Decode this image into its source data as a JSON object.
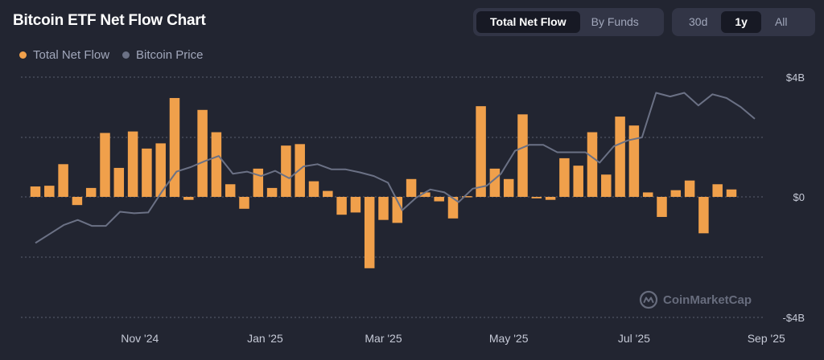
{
  "header": {
    "title": "Bitcoin ETF Net Flow Chart",
    "view_tabs": [
      {
        "label": "Total Net Flow",
        "active": true
      },
      {
        "label": "By Funds",
        "active": false
      }
    ],
    "range_tabs": [
      {
        "label": "30d",
        "active": false
      },
      {
        "label": "1y",
        "active": true
      },
      {
        "label": "All",
        "active": false
      }
    ]
  },
  "watermark": {
    "text": "CoinMarketCap",
    "icon": "coinmarketcap-logo-icon"
  },
  "colors": {
    "background": "#222531",
    "net_flow": "#F0A04B",
    "price": "#6B7185",
    "grid": "#5a5e6e",
    "text_muted": "#a1a7bb"
  },
  "chart_data": {
    "type": "bar",
    "legend": [
      "Total Net Flow",
      "Bitcoin Price"
    ],
    "legend_position": "top-left",
    "y_axis": {
      "position": "right",
      "ticks": [
        "$4B",
        "$0",
        "-$4B"
      ],
      "range": [
        -4,
        4
      ],
      "unit": "B USD"
    },
    "x_ticks": [
      {
        "label": "Nov '24",
        "index": 7.5
      },
      {
        "label": "Jan '25",
        "index": 16.5
      },
      {
        "label": "Mar '25",
        "index": 25
      },
      {
        "label": "May '25",
        "index": 34
      },
      {
        "label": "Jul '25",
        "index": 43
      },
      {
        "label": "Sep '25",
        "index": 52.5
      }
    ],
    "grid": "horizontal dotted",
    "series": [
      {
        "name": "Total Net Flow",
        "kind": "bar",
        "values": [
          0.7,
          0.75,
          2.2,
          -0.55,
          0.6,
          4.3,
          1.95,
          4.4,
          3.25,
          3.6,
          6.65,
          -0.2,
          5.85,
          4.35,
          0.85,
          -0.8,
          1.9,
          0.6,
          3.45,
          3.55,
          1.05,
          0.4,
          -1.2,
          -1.05,
          -4.8,
          -1.55,
          -1.75,
          1.2,
          0.3,
          -0.3,
          -1.45,
          0.05,
          6.1,
          1.9,
          1.2,
          5.55,
          -0.1,
          -0.2,
          2.6,
          2.1,
          4.35,
          1.5,
          5.4,
          4.8,
          0.3,
          -1.35,
          0.45,
          1.1,
          -2.45,
          0.85,
          0.5
        ],
        "color": "#F0A04B"
      },
      {
        "name": "Bitcoin Price",
        "kind": "line",
        "values": [
          -3.1,
          -2.5,
          -1.9,
          -1.55,
          -1.95,
          -1.95,
          -1.0,
          -1.1,
          -1.05,
          0.4,
          1.7,
          2.0,
          2.4,
          2.75,
          1.55,
          1.7,
          1.4,
          1.75,
          1.25,
          2.05,
          2.2,
          1.85,
          1.85,
          1.65,
          1.4,
          0.95,
          -0.9,
          -0.05,
          0.5,
          0.3,
          -0.35,
          0.55,
          0.75,
          1.55,
          3.1,
          3.5,
          3.5,
          3.0,
          3.0,
          3.0,
          2.3,
          3.4,
          3.8,
          4.0,
          7.0,
          6.75,
          7.0,
          6.15,
          6.9,
          6.65,
          6.05,
          5.25
        ],
        "color": "#6B7185"
      }
    ]
  }
}
